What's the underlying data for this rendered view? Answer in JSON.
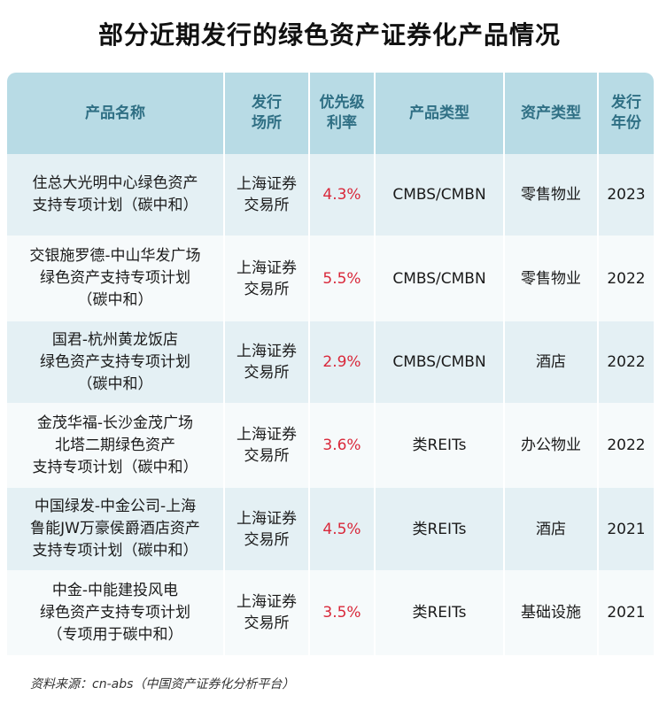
{
  "title": "部分近期发行的绿色资产证券化产品情况",
  "table": {
    "headers": [
      "产品名称",
      "发行\n场所",
      "优先级\n利率",
      "产品类型",
      "资产类型",
      "发行\n年份"
    ],
    "rows": [
      {
        "name": "住总大光明中心绿色资产\n支持专项计划（碳中和）",
        "venue": "上海证券\n交易所",
        "rate": "4.3%",
        "product_type": "CMBS/CMBN",
        "asset_type": "零售物业",
        "year": "2023"
      },
      {
        "name": "交银施罗德-中山华发广场\n绿色资产支持专项计划\n（碳中和）",
        "venue": "上海证券\n交易所",
        "rate": "5.5%",
        "product_type": "CMBS/CMBN",
        "asset_type": "零售物业",
        "year": "2022"
      },
      {
        "name": "国君-杭州黄龙饭店\n绿色资产支持专项计划\n（碳中和）",
        "venue": "上海证券\n交易所",
        "rate": "2.9%",
        "product_type": "CMBS/CMBN",
        "asset_type": "酒店",
        "year": "2022"
      },
      {
        "name": "金茂华福-长沙金茂广场\n北塔二期绿色资产\n支持专项计划（碳中和）",
        "venue": "上海证券\n交易所",
        "rate": "3.6%",
        "product_type": "类REITs",
        "asset_type": "办公物业",
        "year": "2022"
      },
      {
        "name": "中国绿发-中金公司-上海\n鲁能JW万豪侯爵酒店资产\n支持专项计划（碳中和）",
        "venue": "上海证券\n交易所",
        "rate": "4.5%",
        "product_type": "类REITs",
        "asset_type": "酒店",
        "year": "2021"
      },
      {
        "name": "中金-中能建投风电\n绿色资产支持专项计划\n（专项用于碳中和）",
        "venue": "上海证券\n交易所",
        "rate": "3.5%",
        "product_type": "类REITs",
        "asset_type": "基础设施",
        "year": "2021"
      }
    ]
  },
  "source": "资料来源：cn-abs（中国资产证券化分析平台）"
}
